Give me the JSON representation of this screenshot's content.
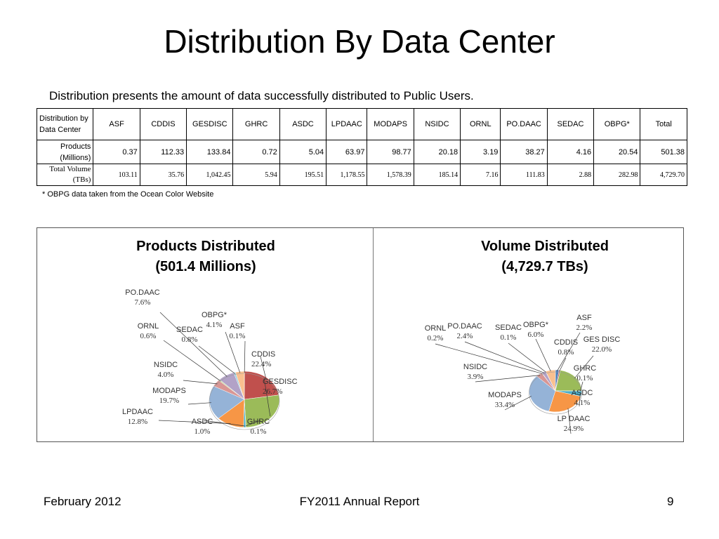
{
  "title": "Distribution By Data Center",
  "subtitle": "Distribution presents the amount of data successfully distributed to Public Users.",
  "table": {
    "header_label": "Distribution by Data Center",
    "columns": [
      "ASF",
      "CDDIS",
      "GESDISC",
      "GHRC",
      "ASDC",
      "LPDAAC",
      "MODAPS",
      "NSIDC",
      "ORNL",
      "PO.DAAC",
      "SEDAC",
      "OBPG*",
      "Total"
    ],
    "rows": [
      {
        "label": "Products (Millions)",
        "values": [
          "0.37",
          "112.33",
          "133.84",
          "0.72",
          "5.04",
          "63.97",
          "98.77",
          "20.18",
          "3.19",
          "38.27",
          "4.16",
          "20.54",
          "501.38"
        ]
      },
      {
        "label": "Total Volume (TBs)",
        "values": [
          "103.11",
          "35.76",
          "1,042.45",
          "5.94",
          "195.51",
          "1,178.55",
          "1,578.39",
          "185.14",
          "7.16",
          "111.83",
          "2.88",
          "282.98",
          "4,729.70"
        ]
      }
    ]
  },
  "footnote": "* OBPG data taken from the Ocean Color Website",
  "chart_data": [
    {
      "type": "pie",
      "title": "Products Distributed",
      "subtitle": "(501.4 Millions)",
      "slices": [
        {
          "name": "ASF",
          "value": 0.1,
          "label": "0.1%",
          "color": "#4f81bd"
        },
        {
          "name": "CDDIS",
          "value": 22.4,
          "label": "22.4%",
          "color": "#c0504d"
        },
        {
          "name": "GESDISC",
          "value": 26.7,
          "label": "26.7%",
          "color": "#9bbb59"
        },
        {
          "name": "GHRC",
          "value": 0.1,
          "label": "0.1%",
          "color": "#8064a2"
        },
        {
          "name": "ASDC",
          "value": 1.0,
          "label": "1.0%",
          "color": "#4bacc6"
        },
        {
          "name": "LPDAAC",
          "value": 12.8,
          "label": "12.8%",
          "color": "#f79646"
        },
        {
          "name": "MODAPS",
          "value": 19.7,
          "label": "19.7%",
          "color": "#95b3d7"
        },
        {
          "name": "NSIDC",
          "value": 4.0,
          "label": "4.0%",
          "color": "#d99694"
        },
        {
          "name": "ORNL",
          "value": 0.6,
          "label": "0.6%",
          "color": "#c3d69b"
        },
        {
          "name": "PO.DAAC",
          "value": 7.6,
          "label": "7.6%",
          "color": "#b2a2c7"
        },
        {
          "name": "SEDAC",
          "value": 0.8,
          "label": "0.8%",
          "color": "#93cddd"
        },
        {
          "name": "OBPG*",
          "value": 4.1,
          "label": "4.1%",
          "color": "#fac08f"
        }
      ]
    },
    {
      "type": "pie",
      "title": "Volume Distributed",
      "subtitle": "(4,729.7 TBs)",
      "slices": [
        {
          "name": "ASF",
          "value": 2.2,
          "label": "2.2%",
          "color": "#4f81bd"
        },
        {
          "name": "CDDIS",
          "value": 0.8,
          "label": "0.8%",
          "color": "#c0504d"
        },
        {
          "name": "GES DISC",
          "value": 22.0,
          "label": "22.0%",
          "color": "#9bbb59"
        },
        {
          "name": "GHRC",
          "value": 0.1,
          "label": "0.1%",
          "color": "#8064a2"
        },
        {
          "name": "ASDC",
          "value": 4.1,
          "label": "4.1%",
          "color": "#4bacc6"
        },
        {
          "name": "LP DAAC",
          "value": 24.9,
          "label": "24.9%",
          "color": "#f79646"
        },
        {
          "name": "MODAPS",
          "value": 33.4,
          "label": "33.4%",
          "color": "#95b3d7"
        },
        {
          "name": "NSIDC",
          "value": 3.9,
          "label": "3.9%",
          "color": "#d99694"
        },
        {
          "name": "ORNL",
          "value": 0.2,
          "label": "0.2%",
          "color": "#c3d69b"
        },
        {
          "name": "PO.DAAC",
          "value": 2.4,
          "label": "2.4%",
          "color": "#b2a2c7"
        },
        {
          "name": "SEDAC",
          "value": 0.1,
          "label": "0.1%",
          "color": "#93cddd"
        },
        {
          "name": "OBPG*",
          "value": 6.0,
          "label": "6.0%",
          "color": "#fac08f"
        }
      ]
    }
  ],
  "footer": {
    "left": "February 2012",
    "center": "FY2011 Annual Report",
    "right": "9"
  }
}
